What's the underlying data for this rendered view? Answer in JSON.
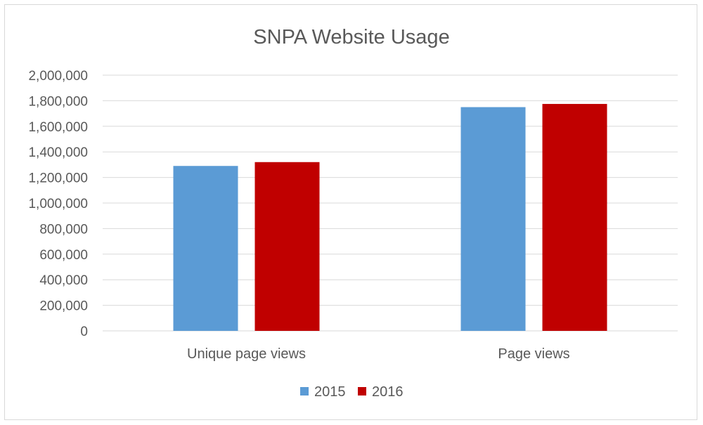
{
  "chart_data": {
    "type": "bar",
    "title": "SNPA Website Usage",
    "categories": [
      "Unique page views",
      "Page views"
    ],
    "series": [
      {
        "name": "2015",
        "color": "#5b9bd5",
        "values": [
          1290000,
          1750000
        ]
      },
      {
        "name": "2016",
        "color": "#c00000",
        "values": [
          1320000,
          1775000
        ]
      }
    ],
    "ylim": [
      0,
      2000000
    ],
    "yticks": [
      0,
      200000,
      400000,
      600000,
      800000,
      1000000,
      1200000,
      1400000,
      1600000,
      1800000,
      2000000
    ],
    "ytick_labels": [
      "0",
      "200,000",
      "400,000",
      "600,000",
      "800,000",
      "1,000,000",
      "1,200,000",
      "1,400,000",
      "1,600,000",
      "1,800,000",
      "2,000,000"
    ],
    "grid": true,
    "legend_position": "bottom",
    "xlabel": "",
    "ylabel": ""
  }
}
